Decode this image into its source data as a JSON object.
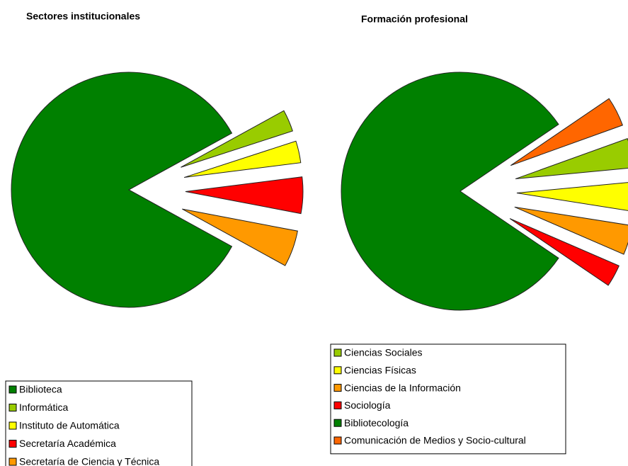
{
  "chart_data": [
    {
      "type": "pie",
      "title": "Sectores institucionales",
      "categories": [
        "Biblioteca",
        "Informática",
        "Instituto de Automática",
        "Secretaría Académica",
        "Secretaría de Ciencia y Técnica"
      ],
      "values": [
        84,
        3,
        3,
        5,
        5
      ],
      "colors": [
        "#008000",
        "#99cc00",
        "#ffff00",
        "#ff0000",
        "#ff9900"
      ]
    },
    {
      "type": "pie",
      "title": "Formación profesional",
      "categories": [
        "Ciencias Sociales",
        "Ciencias Físicas",
        "Ciencias de la Información",
        "Sociología",
        "Bibliotecología",
        "Comunicación de Medios y Socio-cultural"
      ],
      "values": [
        4,
        4,
        4,
        3,
        81,
        4
      ],
      "colors": [
        "#99cc00",
        "#ffff00",
        "#ff9900",
        "#ff0000",
        "#008000",
        "#ff6600"
      ]
    }
  ]
}
